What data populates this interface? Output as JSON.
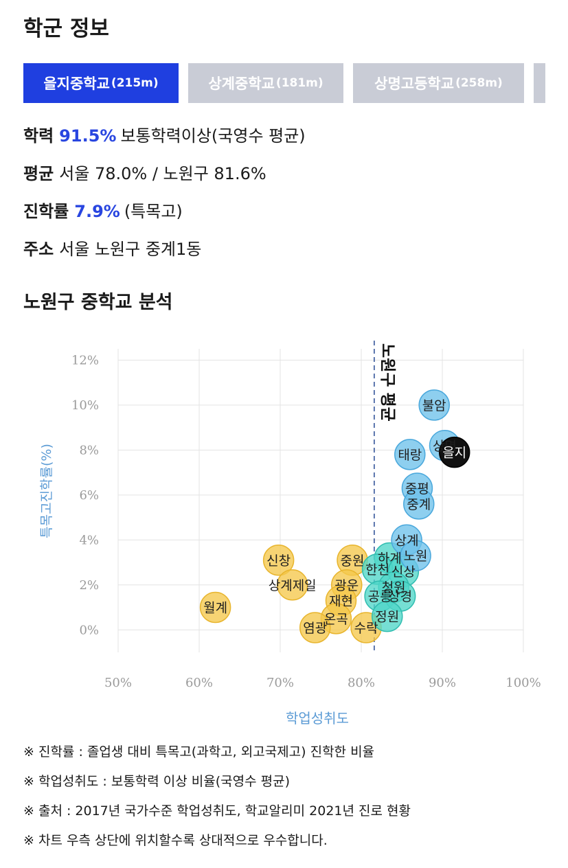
{
  "school_info": {
    "title": "학군 정보",
    "tabs": [
      {
        "name": "을지중학교",
        "distance": "(215m)",
        "active": true
      },
      {
        "name": "상계중학교",
        "distance": "(181m)",
        "active": false
      },
      {
        "name": "상명고등학교",
        "distance": "(258m)",
        "active": false
      }
    ],
    "rows": [
      {
        "label": "학력",
        "highlight": "91.5%",
        "text": "보통학력이상(국영수 평균)"
      },
      {
        "label": "평균",
        "highlight": "",
        "text": "서울 78.0% / 노원구 81.6%"
      },
      {
        "label": "진학률",
        "highlight": "7.9%",
        "text": "(특목고)"
      },
      {
        "label": "주소",
        "highlight": "",
        "text": "서울 노원구 중계1동"
      }
    ]
  },
  "analysis": {
    "title": "노원구 중학교 분석"
  },
  "colors": {
    "accent": "#2946e0",
    "tab_active": "#1f3fe0",
    "tab_inactive": "#c9ccd6",
    "axis_label": "#5b9bd5",
    "bubble_blue": "#6ec1ea",
    "bubble_teal": "#4fd6c8",
    "bubble_yellow": "#f5c84c",
    "bubble_self": "#111111"
  },
  "chart_data": {
    "type": "scatter",
    "xlabel": "학업성취도",
    "ylabel": "특목고진학률(%)",
    "xlim": [
      50,
      100
    ],
    "ylim": [
      -1,
      12.5
    ],
    "x_ticks": [
      "50%",
      "60%",
      "70%",
      "80%",
      "90%",
      "100%"
    ],
    "y_ticks": [
      "0%",
      "2%",
      "4%",
      "6%",
      "8%",
      "10%",
      "12%"
    ],
    "grid": true,
    "reference_line": {
      "x": 81.6,
      "label": "노원구 평균"
    },
    "points": [
      {
        "label": "불암",
        "x": 89.0,
        "y": 10.0,
        "group": "blue"
      },
      {
        "label": "상명",
        "x": 90.3,
        "y": 8.2,
        "group": "blue"
      },
      {
        "label": "을지",
        "x": 91.5,
        "y": 7.9,
        "group": "self"
      },
      {
        "label": "태랑",
        "x": 86.0,
        "y": 7.8,
        "group": "blue"
      },
      {
        "label": "중평",
        "x": 86.9,
        "y": 6.3,
        "group": "blue"
      },
      {
        "label": "중계",
        "x": 87.1,
        "y": 5.6,
        "group": "blue"
      },
      {
        "label": "상계",
        "x": 85.6,
        "y": 4.0,
        "group": "blue"
      },
      {
        "label": "노원",
        "x": 86.7,
        "y": 3.3,
        "group": "blue"
      },
      {
        "label": "하계",
        "x": 83.5,
        "y": 3.2,
        "group": "teal"
      },
      {
        "label": "한천",
        "x": 82.0,
        "y": 2.7,
        "group": "teal"
      },
      {
        "label": "신상",
        "x": 85.2,
        "y": 2.6,
        "group": "teal"
      },
      {
        "label": "청원",
        "x": 84.0,
        "y": 1.9,
        "group": "teal"
      },
      {
        "label": "공릉",
        "x": 82.3,
        "y": 1.5,
        "group": "teal"
      },
      {
        "label": "상경",
        "x": 84.8,
        "y": 1.5,
        "group": "teal"
      },
      {
        "label": "정원",
        "x": 83.2,
        "y": 0.6,
        "group": "teal"
      },
      {
        "label": "신창",
        "x": 69.8,
        "y": 3.1,
        "group": "yellow"
      },
      {
        "label": "상계제일",
        "x": 71.5,
        "y": 2.0,
        "group": "yellow"
      },
      {
        "label": "월계",
        "x": 62.0,
        "y": 1.0,
        "group": "yellow"
      },
      {
        "label": "중원",
        "x": 78.9,
        "y": 3.1,
        "group": "yellow"
      },
      {
        "label": "광운",
        "x": 78.2,
        "y": 2.0,
        "group": "yellow"
      },
      {
        "label": "재현",
        "x": 77.5,
        "y": 1.3,
        "group": "yellow"
      },
      {
        "label": "온곡",
        "x": 76.9,
        "y": 0.5,
        "group": "yellow"
      },
      {
        "label": "염광",
        "x": 74.3,
        "y": 0.1,
        "group": "yellow"
      },
      {
        "label": "수락",
        "x": 80.6,
        "y": 0.1,
        "group": "yellow"
      }
    ]
  },
  "notes": [
    "※ 진학률 : 졸업생 대비 특목고(과학고, 외고국제고) 진학한 비율",
    "※ 학업성취도 : 보통학력 이상 비율(국영수 평균)",
    "※ 출처 : 2017년 국가수준 학업성취도, 학교알리미 2021년 진로 현황",
    "※ 차트 우측 상단에 위치할수록 상대적으로 우수합니다."
  ]
}
